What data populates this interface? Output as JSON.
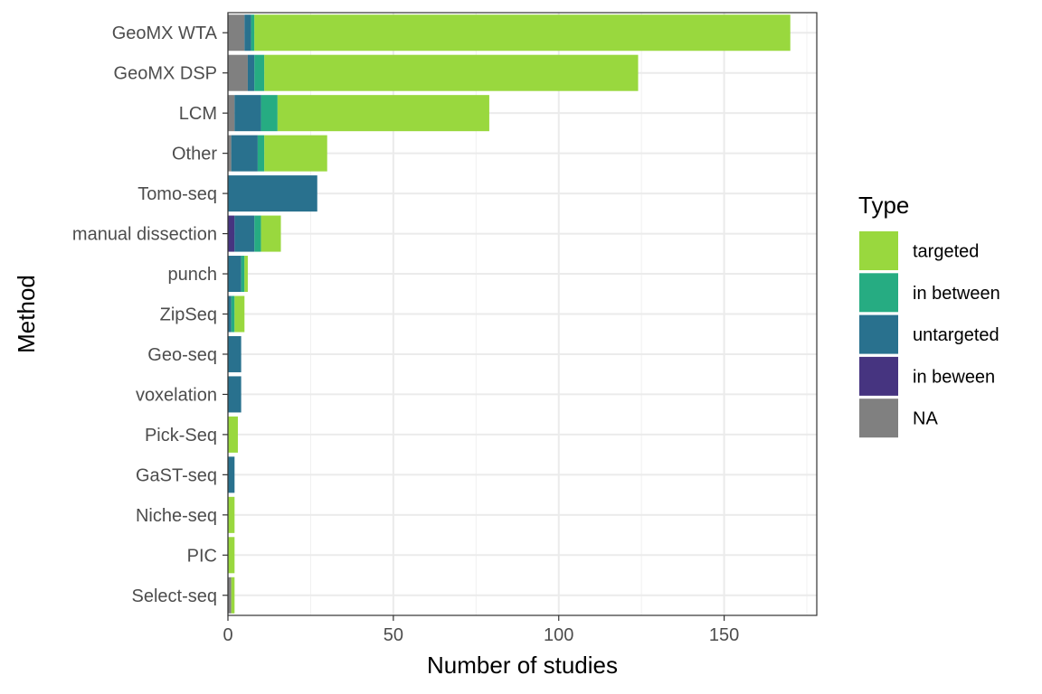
{
  "chart_data": {
    "type": "bar",
    "orientation": "horizontal",
    "stacked": true,
    "xlabel": "Number of studies",
    "ylabel": "Method",
    "xlim": [
      0,
      178
    ],
    "xticks": [
      0,
      50,
      100,
      150
    ],
    "grid": true,
    "legend": {
      "title": "Type",
      "placement": "right",
      "entries": [
        {
          "name": "targeted",
          "color": "#99d83e"
        },
        {
          "name": "in between",
          "color": "#26ac82"
        },
        {
          "name": "untargeted",
          "color": "#29718e"
        },
        {
          "name": "in beween",
          "color": "#463480"
        },
        {
          "name": "NA",
          "color": "#808080"
        }
      ]
    },
    "categories": [
      "GeoMX WTA",
      "GeoMX DSP",
      "LCM",
      "Other",
      "Tomo-seq",
      "manual dissection",
      "punch",
      "ZipSeq",
      "Geo-seq",
      "voxelation",
      "Pick-Seq",
      "GaST-seq",
      "Niche-seq",
      "PIC",
      "Select-seq"
    ],
    "stack_order": [
      "NA",
      "in beween",
      "untargeted",
      "in between",
      "targeted"
    ],
    "series": [
      {
        "name": "NA",
        "color": "#808080",
        "values": [
          5,
          6,
          2,
          1,
          0,
          0,
          0,
          0,
          0,
          0,
          0,
          0,
          0,
          0,
          1
        ]
      },
      {
        "name": "in beween",
        "color": "#463480",
        "values": [
          0,
          0,
          0,
          0,
          0,
          2,
          0,
          0,
          0,
          0,
          0,
          0,
          0,
          0,
          0
        ]
      },
      {
        "name": "untargeted",
        "color": "#29718e",
        "values": [
          2,
          2,
          8,
          8,
          27,
          6,
          4,
          1,
          4,
          4,
          0,
          2,
          0,
          0,
          0
        ]
      },
      {
        "name": "in between",
        "color": "#26ac82",
        "values": [
          1,
          3,
          5,
          2,
          0,
          2,
          1,
          1,
          0,
          0,
          0,
          0,
          0,
          0,
          0
        ]
      },
      {
        "name": "targeted",
        "color": "#99d83e",
        "values": [
          162,
          113,
          64,
          19,
          0,
          6,
          1,
          3,
          0,
          0,
          3,
          0,
          2,
          2,
          1
        ]
      }
    ]
  }
}
